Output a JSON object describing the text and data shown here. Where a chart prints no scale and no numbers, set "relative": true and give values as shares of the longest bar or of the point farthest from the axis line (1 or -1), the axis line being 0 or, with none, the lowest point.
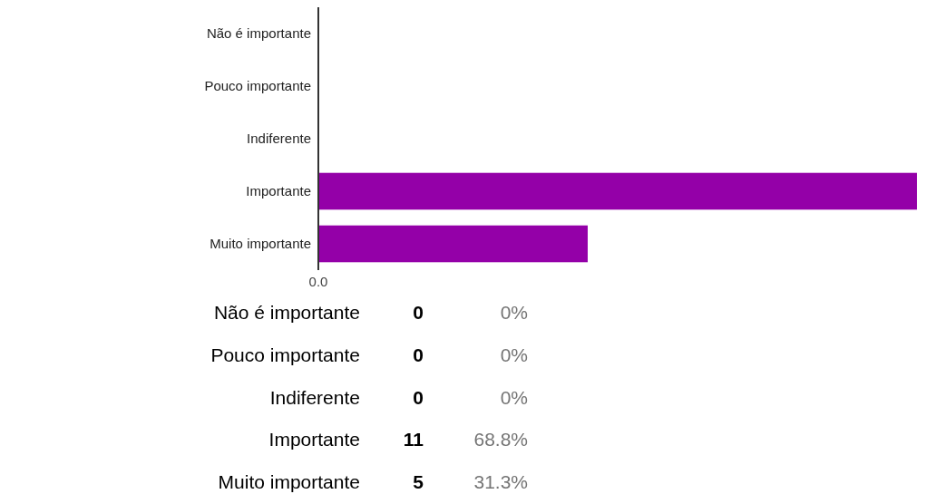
{
  "chart_data": [
    {
      "type": "bar",
      "orientation": "horizontal",
      "relative": true,
      "categories": [
        "Não é importante",
        "Pouco importante",
        "Indiferente",
        "Importante",
        "Muito importante"
      ],
      "values": [
        0,
        0,
        0,
        1,
        0.45
      ],
      "color": "#9400a8",
      "annotations": [
        "0.0"
      ]
    },
    {
      "type": "other",
      "categories": [
        "Não é importante",
        "Pouco importante",
        "Indiferente",
        "Importante",
        "Muito importante"
      ],
      "values": [
        0,
        0,
        0,
        11,
        5
      ],
      "data_labels": true,
      "annotations": [
        "0%",
        "0%",
        "0%",
        "68.8%",
        "31.3%"
      ]
    }
  ]
}
